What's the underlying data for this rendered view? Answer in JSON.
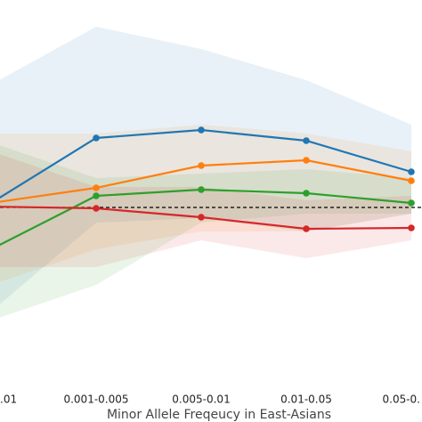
{
  "chart_data": {
    "type": "line",
    "xlabel": "Minor Allele Freqeucy in East-Asians",
    "categories": [
      ".01",
      "0.001-0.005",
      "0.005-0.01",
      "0.01-0.05",
      "0.05-0."
    ],
    "ylim": [
      -2.4,
      2.33
    ],
    "hline": 0,
    "series": [
      {
        "color": "#1f77b4",
        "values": [
          0.05,
          0.78,
          0.87,
          0.75,
          0.4
        ],
        "lower": [
          -1.17,
          -0.17,
          -0.12,
          -0.27,
          -0.07
        ],
        "upper": [
          1.38,
          2.03,
          1.78,
          1.43,
          0.93
        ]
      },
      {
        "color": "#ff7f0e",
        "values": [
          0.05,
          0.22,
          0.47,
          0.53,
          0.3
        ],
        "lower": [
          -0.87,
          -0.47,
          -0.27,
          -0.27,
          -0.07
        ],
        "upper": [
          0.83,
          0.83,
          0.93,
          0.83,
          0.63
        ]
      },
      {
        "color": "#2ca02c",
        "values": [
          -0.47,
          0.13,
          0.2,
          0.16,
          0.05
        ],
        "lower": [
          -1.27,
          -0.87,
          -0.17,
          -0.07,
          -0.07
        ],
        "upper": [
          0.73,
          0.33,
          0.38,
          0.43,
          0.33
        ]
      },
      {
        "color": "#d62728",
        "values": [
          0.01,
          -0.01,
          -0.11,
          -0.24,
          -0.23
        ],
        "lower": [
          -0.67,
          -0.67,
          -0.37,
          -0.57,
          -0.37
        ],
        "upper": [
          0.63,
          0.23,
          0.23,
          0.08,
          0.13
        ]
      }
    ]
  }
}
